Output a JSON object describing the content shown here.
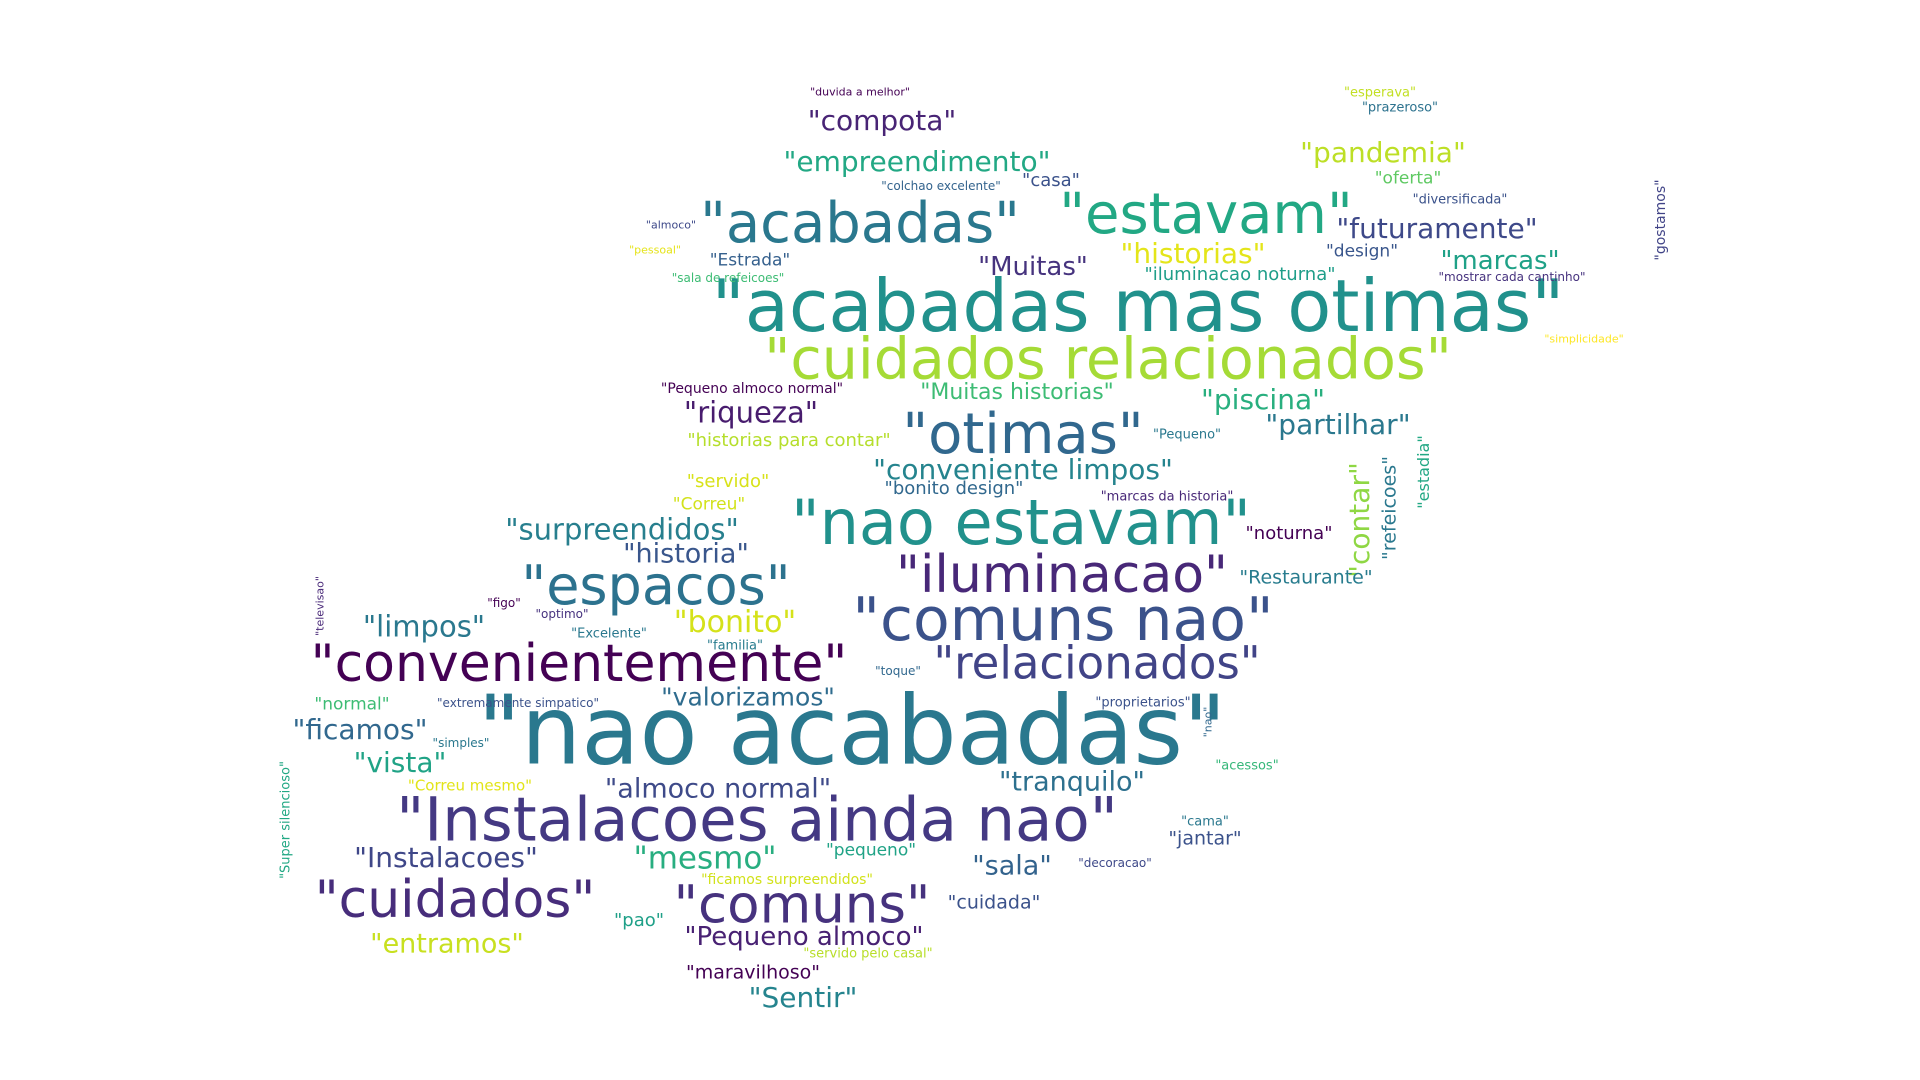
{
  "words": [
    {
      "text": "\"nao acabadas\"",
      "color": "#2a788e"
    },
    {
      "text": "\"acabadas mas otimas\"",
      "color": "#21918c"
    },
    {
      "text": "\"cuidados relacionados\"",
      "color": "#a5db36"
    },
    {
      "text": "\"Instalacoes ainda nao\"",
      "color": "#443983"
    },
    {
      "text": "\"convenientemente\"",
      "color": "#440154"
    },
    {
      "text": "\"comuns nao\"",
      "color": "#3b528b"
    },
    {
      "text": "\"nao estavam\"",
      "color": "#21918c"
    },
    {
      "text": "\"acabadas\"",
      "color": "#2a788e"
    },
    {
      "text": "\"estavam\"",
      "color": "#22a884"
    },
    {
      "text": "\"otimas\"",
      "color": "#31688e"
    },
    {
      "text": "\"espacos\"",
      "color": "#2c728e"
    },
    {
      "text": "\"iluminacao\"",
      "color": "#482878"
    },
    {
      "text": "\"relacionados\"",
      "color": "#414487"
    },
    {
      "text": "\"cuidados\"",
      "color": "#472d7b"
    },
    {
      "text": "\"comuns\"",
      "color": "#46327e"
    },
    {
      "text": "\"compota\"",
      "color": "#482475"
    },
    {
      "text": "\"empreendimento\"",
      "color": "#22a884"
    },
    {
      "text": "\"pandemia\"",
      "color": "#bddf26"
    },
    {
      "text": "\"futuramente\"",
      "color": "#3e4989"
    },
    {
      "text": "\"historias\"",
      "color": "#e4e51a"
    },
    {
      "text": "\"marcas\"",
      "color": "#1fa187"
    },
    {
      "text": "\"Muitas\"",
      "color": "#46337e"
    },
    {
      "text": "\"riqueza\"",
      "color": "#481c6e"
    },
    {
      "text": "\"Muitas historias\"",
      "color": "#3dbc74"
    },
    {
      "text": "\"piscina\"",
      "color": "#29af7f"
    },
    {
      "text": "\"partilhar\"",
      "color": "#2a788e"
    },
    {
      "text": "\"conveniente limpos\"",
      "color": "#25848e"
    },
    {
      "text": "\"surpreendidos\"",
      "color": "#277f8e"
    },
    {
      "text": "\"historia\"",
      "color": "#39568c"
    },
    {
      "text": "\"limpos\"",
      "color": "#2a788e"
    },
    {
      "text": "\"bonito\"",
      "color": "#d5e21a"
    },
    {
      "text": "\"valorizamos\"",
      "color": "#2f6c8e"
    },
    {
      "text": "\"ficamos\"",
      "color": "#31688e"
    },
    {
      "text": "\"vista\"",
      "color": "#20a386"
    },
    {
      "text": "\"almoco normal\"",
      "color": "#3e4a89"
    },
    {
      "text": "\"tranquilo\"",
      "color": "#2d708e"
    },
    {
      "text": "\"Instalacoes\"",
      "color": "#3f4788"
    },
    {
      "text": "\"mesmo\"",
      "color": "#28ae80"
    },
    {
      "text": "\"sala\"",
      "color": "#33638d"
    },
    {
      "text": "\"jantar\"",
      "color": "#3b528b"
    },
    {
      "text": "\"pequeno\"",
      "color": "#20a386"
    },
    {
      "text": "\"entramos\"",
      "color": "#c8e020"
    },
    {
      "text": "\"Pequeno almoco\"",
      "color": "#482173"
    },
    {
      "text": "\"cuidada\"",
      "color": "#3b528b"
    },
    {
      "text": "\"pao\"",
      "color": "#1fa088"
    },
    {
      "text": "\"maravilhoso\"",
      "color": "#440154"
    },
    {
      "text": "\"Sentir\"",
      "color": "#25848e"
    },
    {
      "text": "\"contar\"",
      "color": "#8fd744"
    },
    {
      "text": "\"refeicoes\"",
      "color": "#2a788e"
    },
    {
      "text": "\"estadia\"",
      "color": "#22a884"
    },
    {
      "text": "\"gostamos\"",
      "color": "#414487"
    },
    {
      "text": "\"Restaurante\"",
      "color": "#287c8e"
    },
    {
      "text": "\"noturna\"",
      "color": "#440154"
    },
    {
      "text": "\"bonito design\"",
      "color": "#31688e"
    },
    {
      "text": "\"marcas da historia\"",
      "color": "#482878"
    },
    {
      "text": "\"Pequeno\"",
      "color": "#2a788e"
    },
    {
      "text": "\"historias para contar\"",
      "color": "#b5de2b"
    },
    {
      "text": "\"servido\"",
      "color": "#d8e219"
    },
    {
      "text": "\"Correu\"",
      "color": "#d2e21b"
    },
    {
      "text": "\"Pequeno almoco normal\"",
      "color": "#440154"
    },
    {
      "text": "\"iluminacao noturna\"",
      "color": "#1f9e89"
    },
    {
      "text": "\"design\"",
      "color": "#39568c"
    },
    {
      "text": "\"mostrar cada cantinho\"",
      "color": "#46327e"
    },
    {
      "text": "\"simplicidade\"",
      "color": "#fde725"
    },
    {
      "text": "\"Estrada\"",
      "color": "#35608d"
    },
    {
      "text": "\"sala de refeicoes\"",
      "color": "#3dbc74"
    },
    {
      "text": "\"pessoal\"",
      "color": "#e5e419"
    },
    {
      "text": "\"almoco\"",
      "color": "#3e4989"
    },
    {
      "text": "\"colchao excelente\"",
      "color": "#33638d"
    },
    {
      "text": "\"casa\"",
      "color": "#3b528b"
    },
    {
      "text": "\"oferta\"",
      "color": "#5ec962"
    },
    {
      "text": "\"diversificada\"",
      "color": "#3b528b"
    },
    {
      "text": "\"esperava\"",
      "color": "#c2df23"
    },
    {
      "text": "\"prazeroso\"",
      "color": "#2c728e"
    },
    {
      "text": "\"duvida a melhor\"",
      "color": "#440154"
    },
    {
      "text": "\"televisao\"",
      "color": "#482878"
    },
    {
      "text": "\"figo\"",
      "color": "#440154"
    },
    {
      "text": "\"optimo\"",
      "color": "#46327e"
    },
    {
      "text": "\"Excelente\"",
      "color": "#2a788e"
    },
    {
      "text": "\"familia\"",
      "color": "#287c8e"
    },
    {
      "text": "\"toque\"",
      "color": "#31688e"
    },
    {
      "text": "\"normal\"",
      "color": "#3dbc74"
    },
    {
      "text": "\"extremamente simpatico\"",
      "color": "#3b528b"
    },
    {
      "text": "\"simples\"",
      "color": "#2a788e"
    },
    {
      "text": "\"Super silencioso\"",
      "color": "#22a884"
    },
    {
      "text": "\"Correu mesmo\"",
      "color": "#e2e418"
    },
    {
      "text": "\"proprietarios\"",
      "color": "#3b528b"
    },
    {
      "text": "\"nao\"",
      "color": "#31688e"
    },
    {
      "text": "\"acessos\"",
      "color": "#35b779"
    },
    {
      "text": "\"cama\"",
      "color": "#2a788e"
    },
    {
      "text": "\"decoracao\"",
      "color": "#3e4989"
    },
    {
      "text": "\"ficamos surpreendidos\"",
      "color": "#d2e21b"
    },
    {
      "text": "\"servido pelo casal\"",
      "color": "#b8de29"
    }
  ]
}
